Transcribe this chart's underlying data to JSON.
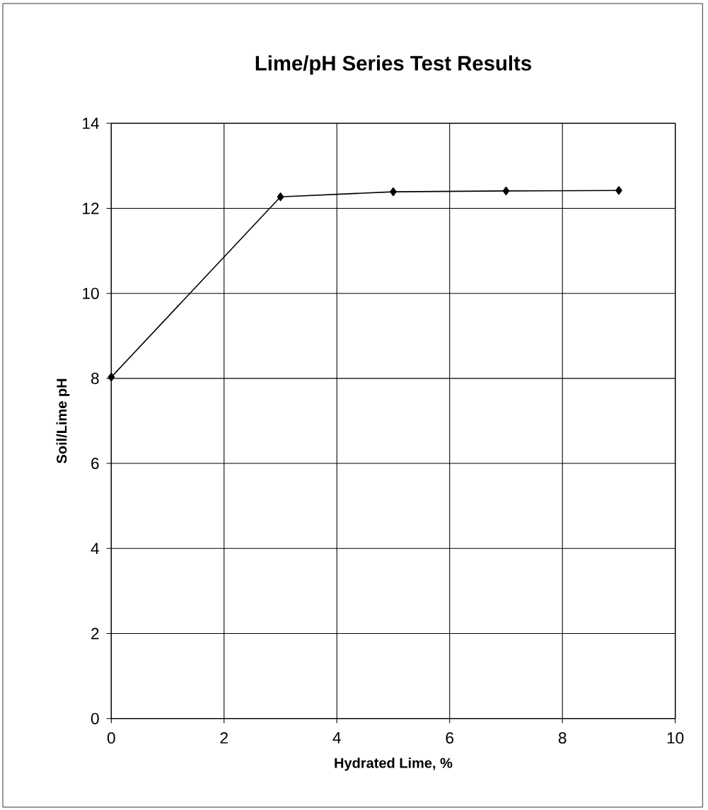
{
  "chart_data": {
    "type": "line",
    "title": "Lime/pH Series Test Results",
    "xlabel": "Hydrated Lime, %",
    "ylabel": "Soil/Lime pH",
    "x": [
      0,
      3,
      5,
      7,
      9
    ],
    "series": [
      {
        "color": "#000000",
        "values": [
          8.03,
          12.27,
          12.39,
          12.41,
          12.42
        ]
      }
    ],
    "xlim": [
      0,
      10
    ],
    "xticks": [
      0,
      2,
      4,
      6,
      8,
      10
    ],
    "ylim": [
      0,
      14
    ],
    "yticks": [
      0,
      2,
      4,
      6,
      8,
      10,
      12,
      14
    ],
    "grid": true,
    "marker": "diamond",
    "line_style": "solid"
  }
}
